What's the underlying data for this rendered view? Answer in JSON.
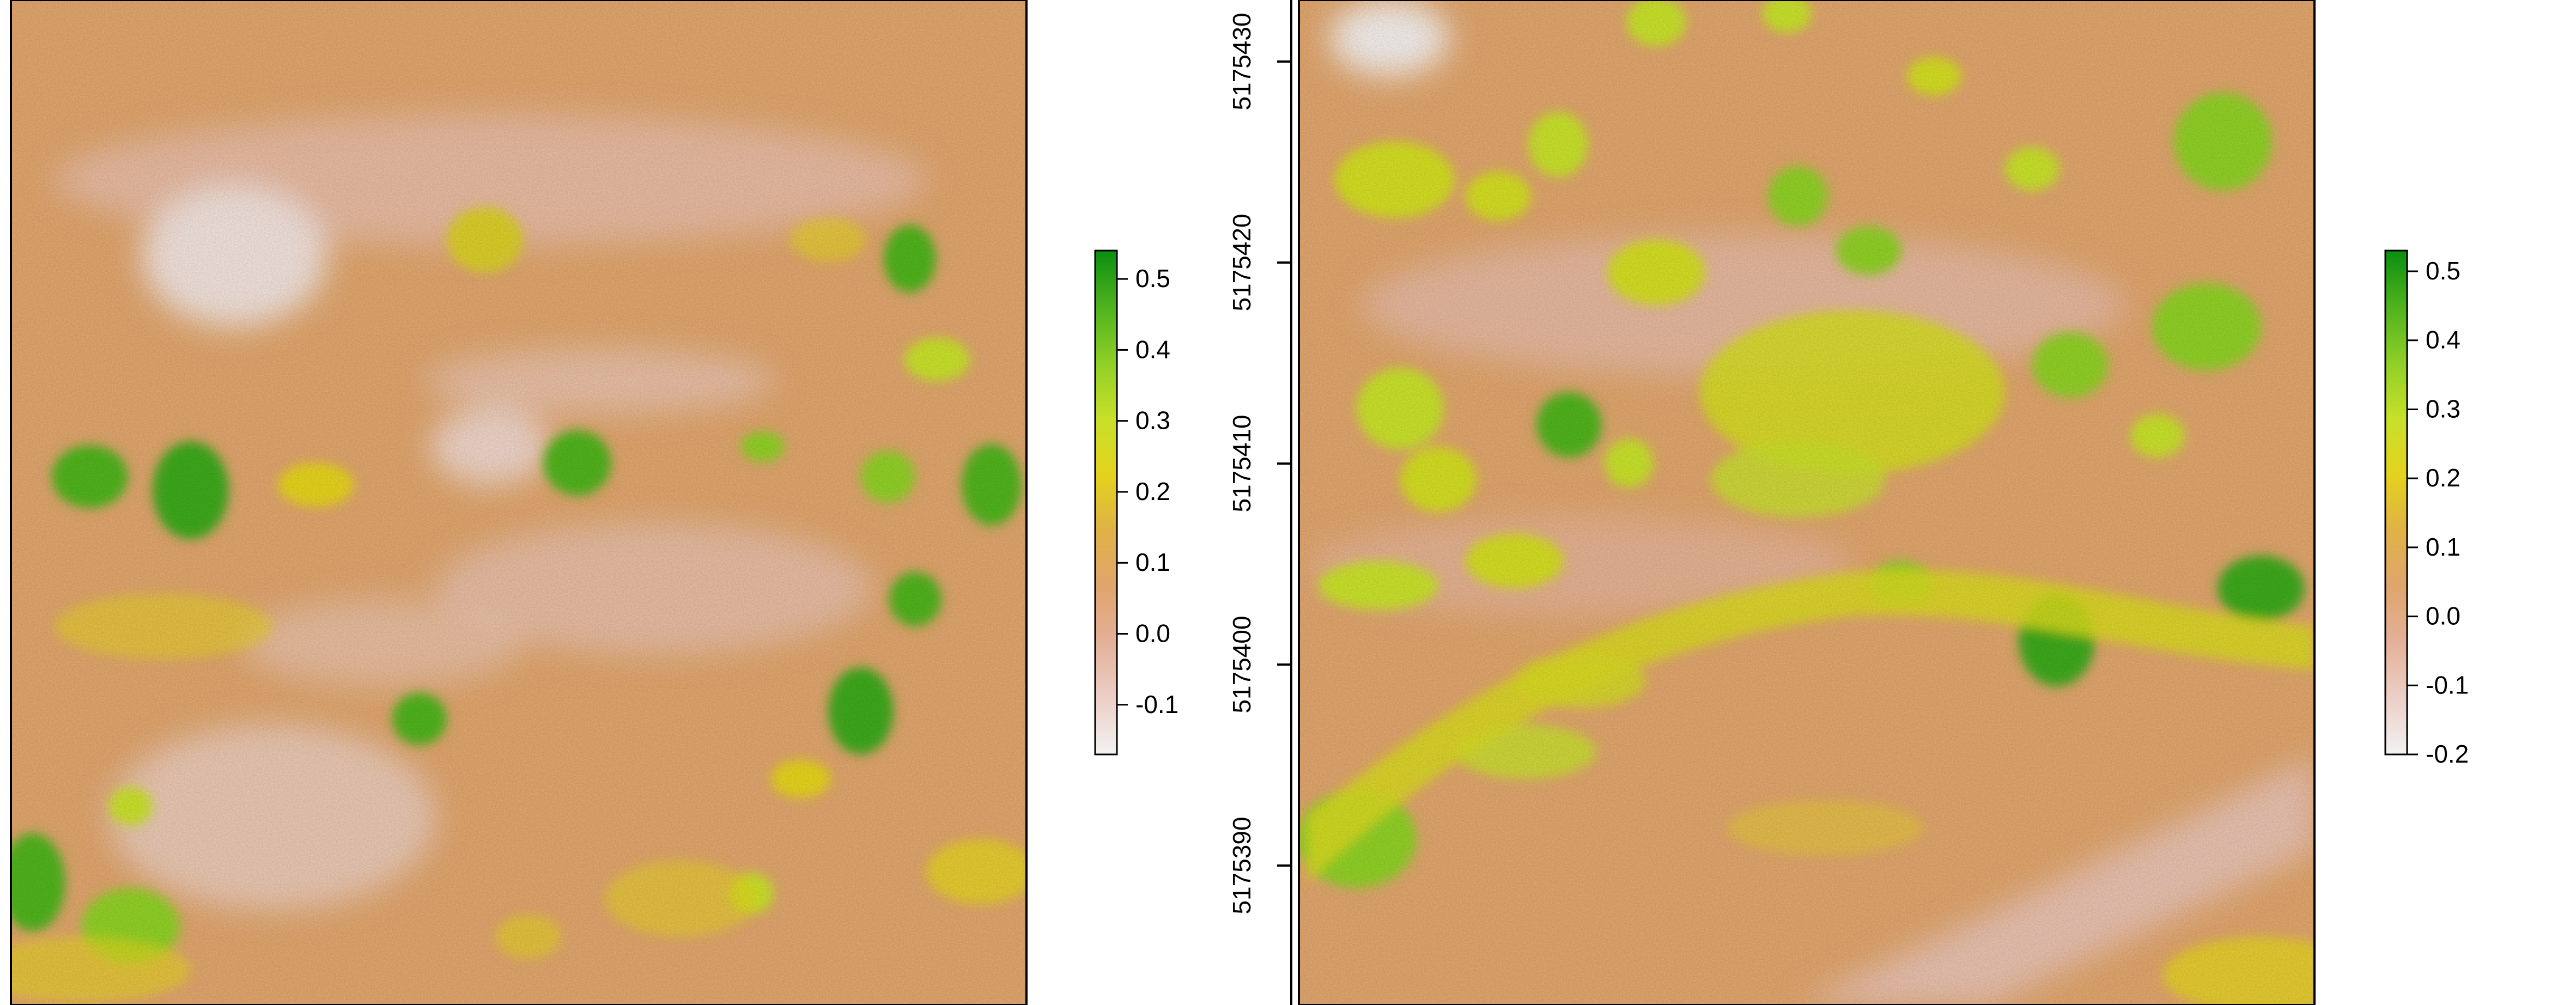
{
  "chart_data": [
    {
      "type": "heatmap",
      "description": "Raster map of vegetation index values (left panel)",
      "title": "",
      "xlabel": "",
      "ylabel": "",
      "y_axis": {
        "visible": false,
        "ticks": []
      },
      "legend": {
        "placement": "right",
        "min": -0.17,
        "max": 0.54,
        "ticks": [
          0.5,
          0.4,
          0.3,
          0.2,
          0.1,
          0.0,
          -0.1
        ],
        "tick_labels": [
          "0.5",
          "0.4",
          "0.3",
          "0.2",
          "0.1",
          "0.0",
          "-0.1"
        ]
      },
      "grid": false
    },
    {
      "type": "heatmap",
      "description": "Raster map of vegetation index values (right panel)",
      "title": "",
      "xlabel": "",
      "ylabel": "",
      "y_axis": {
        "visible": true,
        "ticks": [
          5175430,
          5175420,
          5175410,
          5175400,
          5175390
        ],
        "tick_labels": [
          "5175430",
          "5175420",
          "5175410",
          "5175400",
          "5175390"
        ]
      },
      "legend": {
        "placement": "right",
        "min": -0.2,
        "max": 0.53,
        "ticks": [
          0.5,
          0.4,
          0.3,
          0.2,
          0.1,
          0.0,
          -0.1,
          -0.2
        ],
        "tick_labels": [
          "0.5",
          "0.4",
          "0.3",
          "0.2",
          "0.1",
          "0.0",
          "-0.1",
          "-0.2"
        ]
      },
      "grid": false
    }
  ],
  "colors": {
    "scale": [
      "#f2f2f2",
      "#eccfc6",
      "#e4b199",
      "#dfa56d",
      "#e0b246",
      "#e4d21e",
      "#c7e02a",
      "#8fcf27",
      "#4fb21d",
      "#0a8f10"
    ],
    "base": "#dfa56d",
    "frame": "#000000"
  }
}
